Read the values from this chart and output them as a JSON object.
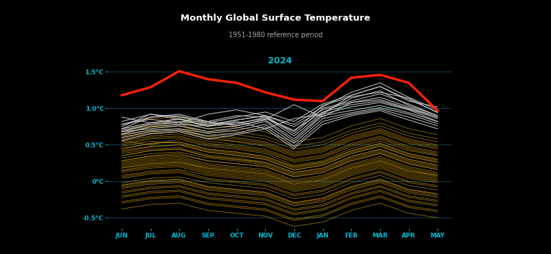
{
  "title": "Monthly Global Surface Temperature",
  "subtitle": "1951-1980 reference period",
  "year_label": "2024",
  "background_color": "#000000",
  "text_color": "#ffffff",
  "axis_label_color": "#00bcd4",
  "grid_color": "#1a5f7a",
  "months": [
    "JUN",
    "JUL",
    "AUG",
    "SEP",
    "OCT",
    "NOV",
    "DEC",
    "JAN",
    "FEB",
    "MAR",
    "APR",
    "MAY"
  ],
  "ylim": [
    -0.65,
    1.72
  ],
  "yticks": [
    -0.5,
    0.0,
    0.5,
    1.0,
    1.5
  ],
  "ytick_labels": [
    "-0.5°C",
    "0°C",
    "0.5°C",
    "1.0°C",
    "1.5°C"
  ],
  "current_year_data": [
    1.18,
    1.29,
    1.51,
    1.4,
    1.35,
    1.22,
    1.12,
    1.1,
    1.42,
    1.46,
    1.35,
    0.97
  ],
  "current_year_color": "#ff2200",
  "current_year_linewidth": 2.5,
  "recent_years_color": "#cccccc",
  "recent_years_alpha": 0.9,
  "recent_years_linewidth": 0.8,
  "old_years_color": "#c8960c",
  "old_years_alpha": 0.75,
  "old_years_linewidth": 0.6,
  "recent_years_data": [
    [
      0.88,
      0.8,
      0.85,
      0.75,
      0.82,
      0.72,
      0.86,
      0.92,
      1.18,
      1.3,
      1.12,
      0.95
    ],
    [
      0.82,
      0.92,
      0.88,
      0.82,
      0.76,
      0.85,
      1.05,
      0.88,
      1.08,
      1.12,
      1.0,
      0.88
    ],
    [
      0.78,
      0.85,
      0.8,
      0.92,
      0.98,
      0.9,
      0.78,
      1.02,
      1.22,
      1.35,
      1.15,
      0.98
    ],
    [
      0.75,
      0.92,
      0.85,
      0.8,
      0.88,
      0.95,
      0.82,
      1.06,
      1.18,
      1.3,
      1.1,
      1.02
    ],
    [
      0.72,
      0.88,
      0.92,
      0.82,
      0.9,
      0.88,
      0.68,
      1.04,
      1.16,
      1.22,
      1.14,
      0.94
    ],
    [
      0.68,
      0.78,
      0.82,
      0.78,
      0.84,
      0.9,
      0.75,
      0.98,
      1.08,
      1.15,
      1.02,
      0.88
    ],
    [
      0.65,
      0.75,
      0.78,
      0.76,
      0.8,
      0.86,
      0.7,
      0.95,
      1.05,
      1.1,
      0.99,
      0.86
    ],
    [
      0.78,
      0.88,
      0.9,
      0.8,
      0.78,
      0.88,
      0.62,
      0.94,
      1.14,
      1.24,
      1.04,
      0.9
    ],
    [
      0.7,
      0.78,
      0.8,
      0.72,
      0.76,
      0.84,
      0.58,
      0.92,
      1.02,
      1.08,
      0.98,
      0.82
    ],
    [
      0.72,
      0.8,
      0.86,
      0.76,
      0.84,
      0.9,
      0.65,
      1.0,
      1.1,
      1.2,
      1.06,
      0.9
    ],
    [
      0.68,
      0.72,
      0.76,
      0.68,
      0.73,
      0.82,
      0.55,
      0.9,
      0.97,
      1.04,
      0.94,
      0.82
    ],
    [
      0.64,
      0.7,
      0.72,
      0.66,
      0.7,
      0.78,
      0.52,
      0.86,
      0.94,
      1.01,
      0.92,
      0.79
    ],
    [
      0.6,
      0.68,
      0.7,
      0.62,
      0.66,
      0.75,
      0.48,
      0.82,
      0.92,
      0.99,
      0.88,
      0.76
    ],
    [
      0.56,
      0.65,
      0.68,
      0.58,
      0.64,
      0.72,
      0.45,
      0.78,
      0.9,
      0.97,
      0.84,
      0.72
    ]
  ],
  "old_years_data": [
    [
      0.55,
      0.5,
      0.58,
      0.48,
      0.44,
      0.38,
      0.22,
      0.28,
      0.45,
      0.55,
      0.42,
      0.35
    ],
    [
      0.48,
      0.55,
      0.52,
      0.42,
      0.38,
      0.32,
      0.18,
      0.24,
      0.4,
      0.5,
      0.36,
      0.28
    ],
    [
      0.38,
      0.44,
      0.46,
      0.36,
      0.32,
      0.26,
      0.12,
      0.18,
      0.34,
      0.44,
      0.3,
      0.22
    ],
    [
      0.28,
      0.34,
      0.36,
      0.28,
      0.24,
      0.2,
      0.06,
      0.12,
      0.28,
      0.38,
      0.24,
      0.16
    ],
    [
      0.42,
      0.48,
      0.5,
      0.4,
      0.36,
      0.3,
      0.15,
      0.22,
      0.38,
      0.48,
      0.34,
      0.26
    ],
    [
      0.18,
      0.24,
      0.26,
      0.18,
      0.14,
      0.1,
      -0.04,
      0.02,
      0.18,
      0.28,
      0.14,
      0.08
    ],
    [
      0.32,
      0.38,
      0.4,
      0.32,
      0.28,
      0.22,
      0.08,
      0.14,
      0.3,
      0.4,
      0.26,
      0.18
    ],
    [
      0.08,
      0.14,
      0.16,
      0.08,
      0.04,
      0.0,
      -0.14,
      -0.08,
      0.08,
      0.18,
      0.04,
      -0.02
    ],
    [
      -0.02,
      0.04,
      0.06,
      -0.02,
      -0.06,
      -0.1,
      -0.24,
      -0.18,
      -0.02,
      0.08,
      -0.06,
      -0.12
    ],
    [
      0.45,
      0.52,
      0.54,
      0.44,
      0.4,
      0.34,
      0.2,
      0.26,
      0.42,
      0.52,
      0.38,
      0.3
    ],
    [
      0.14,
      0.2,
      0.22,
      0.12,
      0.08,
      0.04,
      -0.1,
      -0.04,
      0.12,
      0.22,
      0.08,
      0.02
    ],
    [
      0.35,
      0.42,
      0.44,
      0.34,
      0.3,
      0.24,
      0.1,
      0.16,
      0.32,
      0.42,
      0.28,
      0.2
    ],
    [
      -0.08,
      -0.02,
      0.0,
      -0.1,
      -0.14,
      -0.18,
      -0.32,
      -0.26,
      -0.1,
      0.0,
      -0.14,
      -0.2
    ],
    [
      0.06,
      0.12,
      0.14,
      0.04,
      0.0,
      -0.04,
      -0.18,
      -0.12,
      0.04,
      0.14,
      0.0,
      -0.06
    ],
    [
      0.5,
      0.58,
      0.6,
      0.5,
      0.46,
      0.4,
      0.26,
      0.32,
      0.48,
      0.58,
      0.44,
      0.36
    ],
    [
      0.2,
      0.26,
      0.28,
      0.18,
      0.14,
      0.1,
      -0.04,
      0.02,
      0.18,
      0.28,
      0.14,
      0.08
    ],
    [
      -0.16,
      -0.1,
      -0.08,
      -0.18,
      -0.22,
      -0.26,
      -0.4,
      -0.34,
      -0.18,
      -0.08,
      -0.22,
      -0.28
    ],
    [
      0.55,
      0.62,
      0.65,
      0.55,
      0.5,
      0.44,
      0.3,
      0.36,
      0.52,
      0.62,
      0.48,
      0.4
    ],
    [
      0.26,
      0.32,
      0.34,
      0.24,
      0.2,
      0.16,
      0.02,
      0.08,
      0.24,
      0.34,
      0.2,
      0.12
    ],
    [
      -0.05,
      0.01,
      0.03,
      -0.07,
      -0.11,
      -0.15,
      -0.29,
      -0.23,
      -0.07,
      0.03,
      -0.11,
      -0.17
    ],
    [
      0.4,
      0.47,
      0.5,
      0.4,
      0.35,
      0.3,
      0.16,
      0.22,
      0.38,
      0.48,
      0.34,
      0.26
    ],
    [
      0.12,
      0.18,
      0.2,
      0.1,
      0.06,
      0.02,
      -0.12,
      -0.06,
      0.1,
      0.2,
      0.06,
      0.0
    ],
    [
      -0.22,
      -0.16,
      -0.14,
      -0.24,
      -0.28,
      -0.32,
      -0.46,
      -0.4,
      -0.24,
      -0.14,
      -0.28,
      -0.34
    ],
    [
      0.44,
      0.52,
      0.54,
      0.44,
      0.4,
      0.34,
      0.2,
      0.26,
      0.42,
      0.52,
      0.38,
      0.3
    ],
    [
      0.6,
      0.68,
      0.7,
      0.6,
      0.55,
      0.5,
      0.36,
      0.42,
      0.58,
      0.68,
      0.54,
      0.46
    ],
    [
      0.04,
      0.1,
      0.12,
      0.02,
      -0.02,
      -0.06,
      -0.2,
      -0.14,
      0.02,
      0.12,
      -0.02,
      -0.08
    ],
    [
      -0.14,
      -0.08,
      -0.06,
      -0.16,
      -0.2,
      -0.24,
      -0.38,
      -0.32,
      -0.16,
      -0.06,
      -0.2,
      -0.26
    ],
    [
      0.52,
      0.6,
      0.62,
      0.52,
      0.48,
      0.42,
      0.28,
      0.34,
      0.5,
      0.6,
      0.46,
      0.38
    ],
    [
      0.22,
      0.28,
      0.3,
      0.2,
      0.16,
      0.12,
      -0.02,
      0.04,
      0.2,
      0.3,
      0.16,
      0.08
    ],
    [
      -0.3,
      -0.24,
      -0.22,
      -0.32,
      -0.36,
      -0.4,
      -0.54,
      -0.48,
      -0.32,
      -0.22,
      -0.36,
      -0.42
    ],
    [
      0.62,
      0.7,
      0.72,
      0.62,
      0.58,
      0.52,
      0.38,
      0.44,
      0.6,
      0.7,
      0.56,
      0.48
    ],
    [
      0.15,
      0.22,
      0.24,
      0.14,
      0.1,
      0.06,
      -0.08,
      -0.02,
      0.14,
      0.24,
      0.1,
      0.04
    ],
    [
      -0.38,
      -0.32,
      -0.3,
      -0.4,
      -0.44,
      -0.48,
      -0.62,
      -0.56,
      -0.4,
      -0.3,
      -0.44,
      -0.5
    ],
    [
      0.65,
      0.74,
      0.76,
      0.65,
      0.6,
      0.54,
      0.4,
      0.46,
      0.62,
      0.72,
      0.58,
      0.5
    ],
    [
      0.28,
      0.35,
      0.38,
      0.28,
      0.24,
      0.2,
      0.06,
      0.12,
      0.28,
      0.38,
      0.24,
      0.16
    ],
    [
      -0.06,
      0.0,
      0.02,
      -0.08,
      -0.12,
      -0.16,
      -0.3,
      -0.24,
      -0.08,
      0.02,
      -0.12,
      -0.18
    ],
    [
      0.58,
      0.66,
      0.68,
      0.58,
      0.54,
      0.48,
      0.34,
      0.4,
      0.56,
      0.66,
      0.52,
      0.44
    ],
    [
      0.18,
      0.24,
      0.26,
      0.16,
      0.12,
      0.08,
      -0.06,
      0.0,
      0.16,
      0.26,
      0.12,
      0.06
    ],
    [
      -0.2,
      -0.14,
      -0.12,
      -0.22,
      -0.26,
      -0.3,
      -0.44,
      -0.38,
      -0.22,
      -0.12,
      -0.26,
      -0.32
    ],
    [
      0.68,
      0.76,
      0.78,
      0.68,
      0.64,
      0.58,
      0.44,
      0.5,
      0.66,
      0.76,
      0.62,
      0.54
    ],
    [
      0.24,
      0.3,
      0.32,
      0.22,
      0.18,
      0.14,
      0.0,
      0.06,
      0.22,
      0.32,
      0.18,
      0.1
    ],
    [
      -0.28,
      -0.22,
      -0.2,
      -0.3,
      -0.34,
      -0.38,
      -0.52,
      -0.46,
      -0.3,
      -0.2,
      -0.34,
      -0.4
    ],
    [
      0.72,
      0.8,
      0.82,
      0.72,
      0.68,
      0.62,
      0.48,
      0.54,
      0.7,
      0.8,
      0.66,
      0.58
    ],
    [
      0.35,
      0.42,
      0.44,
      0.34,
      0.3,
      0.26,
      0.12,
      0.18,
      0.34,
      0.44,
      0.3,
      0.22
    ],
    [
      -0.1,
      -0.04,
      -0.02,
      -0.12,
      -0.16,
      -0.2,
      -0.34,
      -0.28,
      -0.12,
      -0.02,
      -0.16,
      -0.22
    ],
    [
      0.78,
      0.86,
      0.88,
      0.78,
      0.74,
      0.68,
      0.54,
      0.6,
      0.76,
      0.86,
      0.72,
      0.64
    ]
  ]
}
